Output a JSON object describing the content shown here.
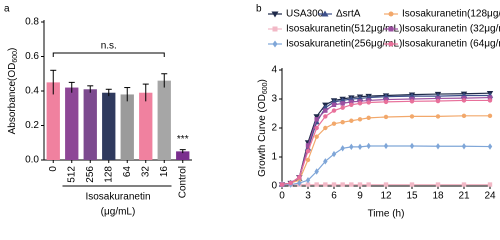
{
  "chart_data": [
    {
      "type": "bar",
      "panel": "a",
      "ylabel": "Absorbance(OD",
      "ylabel_sub": "600",
      "ylabel_end": ")",
      "xlabel": "Isosakuranetin",
      "xlabel_unit": "(μg/mL)",
      "categories": [
        "0",
        "512",
        "256",
        "128",
        "64",
        "32",
        "16",
        "Control"
      ],
      "values": [
        0.45,
        0.42,
        0.41,
        0.39,
        0.38,
        0.39,
        0.46,
        0.05
      ],
      "errors": [
        0.07,
        0.03,
        0.02,
        0.02,
        0.04,
        0.05,
        0.04,
        0.01
      ],
      "colors": [
        "#f0819f",
        "#8d4796",
        "#7c4a8f",
        "#2f3a5e",
        "#9b9b9b",
        "#f0819f",
        "#a6a6a6",
        "#7a2e8e"
      ],
      "ylim": [
        0,
        0.8
      ],
      "yticks": [
        {
          "value": 0,
          "label": "0.0"
        },
        0.2,
        0.4,
        0.6,
        0.8
      ],
      "annotations": [
        "n.s.",
        "***"
      ]
    },
    {
      "type": "line",
      "panel": "b",
      "ylabel": "Growth Curve (OD",
      "ylabel_sub": "600",
      "ylabel_end": ")",
      "xlabel": "Time (h)",
      "x": [
        0,
        1,
        2,
        3,
        4,
        5,
        6,
        7,
        8,
        9,
        10,
        12,
        15,
        18,
        21,
        24
      ],
      "xlim": [
        0,
        24
      ],
      "xticks": [
        0,
        3,
        6,
        9,
        12,
        15,
        18,
        21,
        24
      ],
      "ylim": [
        0,
        4
      ],
      "yticks": [
        0,
        1,
        2,
        3,
        4
      ],
      "series": [
        {
          "name": "USA300",
          "color": "#1f2a4a",
          "marker": "tri-down",
          "values": [
            0.05,
            0.1,
            0.3,
            1.5,
            2.4,
            2.8,
            2.95,
            3.0,
            3.05,
            3.08,
            3.1,
            3.12,
            3.15,
            3.17,
            3.18,
            3.2
          ]
        },
        {
          "name": "ΔsrtA",
          "color": "#3c4f8a",
          "marker": "tri-up",
          "values": [
            0.05,
            0.1,
            0.25,
            1.3,
            2.2,
            2.7,
            2.9,
            2.95,
            3.0,
            3.02,
            3.05,
            3.08,
            3.1,
            3.1,
            3.12,
            3.12
          ]
        },
        {
          "name": "Isosakuranetin(128μg/mL)",
          "color": "#f2a86b",
          "marker": "circle",
          "values": [
            0.05,
            0.1,
            0.2,
            0.9,
            1.7,
            2.0,
            2.15,
            2.2,
            2.25,
            2.3,
            2.35,
            2.38,
            2.4,
            2.4,
            2.42,
            2.42
          ]
        },
        {
          "name": "Isosakuranetin(512μg/mL)",
          "color": "#f2b8c6",
          "marker": "square",
          "values": [
            0.05,
            0.05,
            0.05,
            0.05,
            0.05,
            0.05,
            0.05,
            0.05,
            0.05,
            0.05,
            0.05,
            0.05,
            0.05,
            0.05,
            0.05,
            0.05
          ]
        },
        {
          "name": "Isosakuranetin (32μg/mL)",
          "color": "#9b4fa0",
          "marker": "square",
          "values": [
            0.05,
            0.1,
            0.3,
            1.4,
            2.3,
            2.6,
            2.8,
            2.85,
            2.9,
            2.92,
            2.95,
            2.98,
            3.0,
            3.02,
            3.03,
            3.05
          ]
        },
        {
          "name": "Isosakuranetin(256μg/mL)",
          "color": "#7fa6d8",
          "marker": "diamond",
          "values": [
            0.05,
            0.05,
            0.1,
            0.2,
            0.5,
            0.85,
            1.1,
            1.3,
            1.35,
            1.35,
            1.38,
            1.38,
            1.38,
            1.37,
            1.37,
            1.36
          ]
        },
        {
          "name": "Isosakuranetin (64μg/mL)",
          "color": "#e8709a",
          "marker": "circle",
          "values": [
            0.05,
            0.1,
            0.3,
            1.2,
            2.0,
            2.4,
            2.6,
            2.7,
            2.8,
            2.85,
            2.88,
            2.9,
            2.92,
            2.93,
            2.95,
            2.95
          ]
        }
      ]
    }
  ]
}
